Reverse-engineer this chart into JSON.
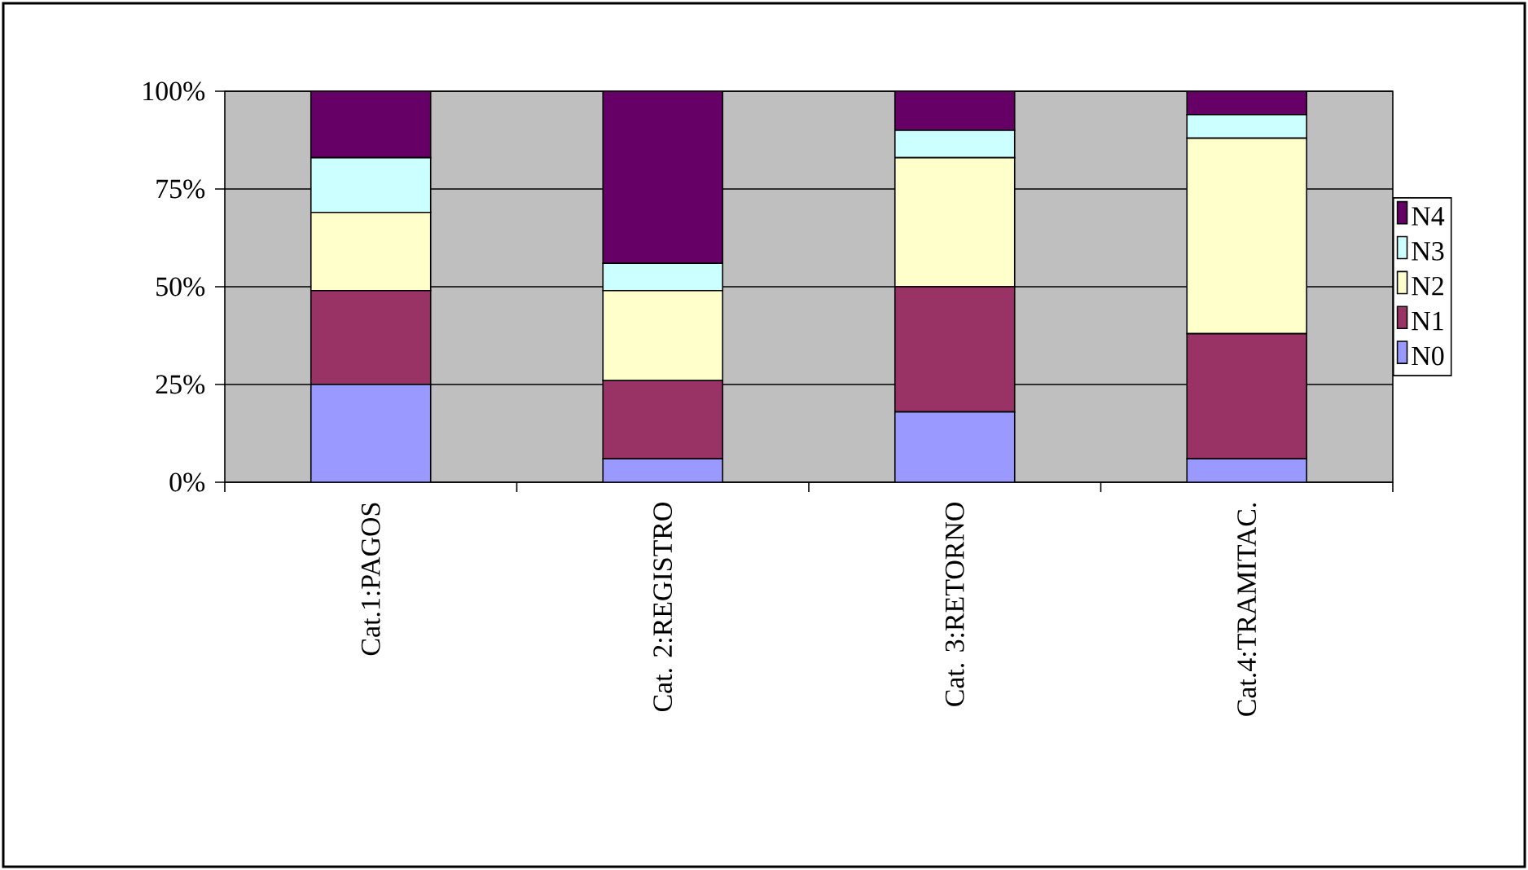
{
  "chart_data": {
    "type": "bar",
    "stacked": true,
    "categories": [
      "Cat.1:PAGOS",
      "Cat. 2:REGISTRO",
      "Cat. 3:RETORNO",
      "Cat.4:TRAMITAC."
    ],
    "series": [
      {
        "name": "N0",
        "color": "#9999ff",
        "values": [
          25,
          6,
          18,
          6
        ]
      },
      {
        "name": "N1",
        "color": "#993366",
        "values": [
          24,
          20,
          32,
          32
        ]
      },
      {
        "name": "N2",
        "color": "#ffffcc",
        "values": [
          20,
          23,
          33,
          50
        ]
      },
      {
        "name": "N3",
        "color": "#ccffff",
        "values": [
          14,
          7,
          7,
          6
        ]
      },
      {
        "name": "N4",
        "color": "#660066",
        "values": [
          17,
          44,
          10,
          6
        ]
      }
    ],
    "ylim": [
      0,
      100
    ],
    "yticks": [
      {
        "value": 0,
        "label": "0%"
      },
      {
        "value": 25,
        "label": "25%"
      },
      {
        "value": 50,
        "label": "50%"
      },
      {
        "value": 75,
        "label": "75%"
      },
      {
        "value": 100,
        "label": "100%"
      }
    ],
    "grid": "y",
    "legend": "right"
  }
}
